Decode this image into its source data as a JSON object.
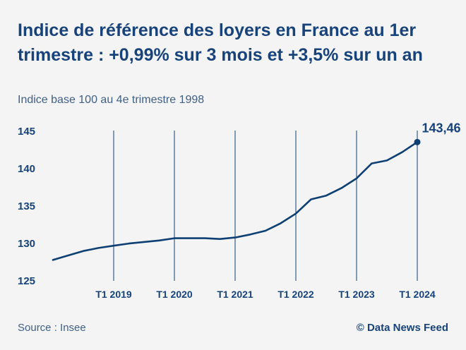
{
  "title": "Indice de référence des loyers en France au 1er trimestre : +0,99% sur 3 mois et +3,5% sur un an",
  "subtitle": "Indice base 100 au 4e trimestre 1998",
  "source": "Source : Insee",
  "credit": "© Data News Feed",
  "colors": {
    "line": "#0e3f72",
    "text": "#17427a",
    "background": "#f4f4f4"
  },
  "chart_data": {
    "type": "line",
    "title": "",
    "xlabel": "",
    "ylabel": "",
    "ylim": [
      125,
      145
    ],
    "yticks": [
      125,
      130,
      135,
      140,
      145
    ],
    "ytick_labels": [
      "125",
      "130",
      "135",
      "140",
      "145"
    ],
    "x_markers": [
      "T1 2019",
      "T1 2020",
      "T1 2021",
      "T1 2022",
      "T1 2023",
      "T1 2024"
    ],
    "grid": "vertical lines at each Q1",
    "series": [
      {
        "name": "",
        "x": [
          "T1 2018",
          "T2 2018",
          "T3 2018",
          "T4 2018",
          "T1 2019",
          "T2 2019",
          "T3 2019",
          "T4 2019",
          "T1 2020",
          "T2 2020",
          "T3 2020",
          "T4 2020",
          "T1 2021",
          "T2 2021",
          "T3 2021",
          "T4 2021",
          "T1 2022",
          "T2 2022",
          "T3 2022",
          "T4 2022",
          "T1 2023",
          "T2 2023",
          "T3 2023",
          "T4 2023",
          "T1 2024"
        ],
        "values": [
          127.7,
          128.3,
          128.9,
          129.3,
          129.6,
          129.9,
          130.1,
          130.3,
          130.6,
          130.6,
          130.6,
          130.5,
          130.7,
          131.1,
          131.6,
          132.6,
          133.9,
          135.8,
          136.3,
          137.3,
          138.6,
          140.6,
          141.0,
          142.1,
          143.46
        ]
      }
    ],
    "annotations": [
      {
        "x": "T1 2024",
        "y": 143.46,
        "label": "143,46"
      }
    ]
  }
}
